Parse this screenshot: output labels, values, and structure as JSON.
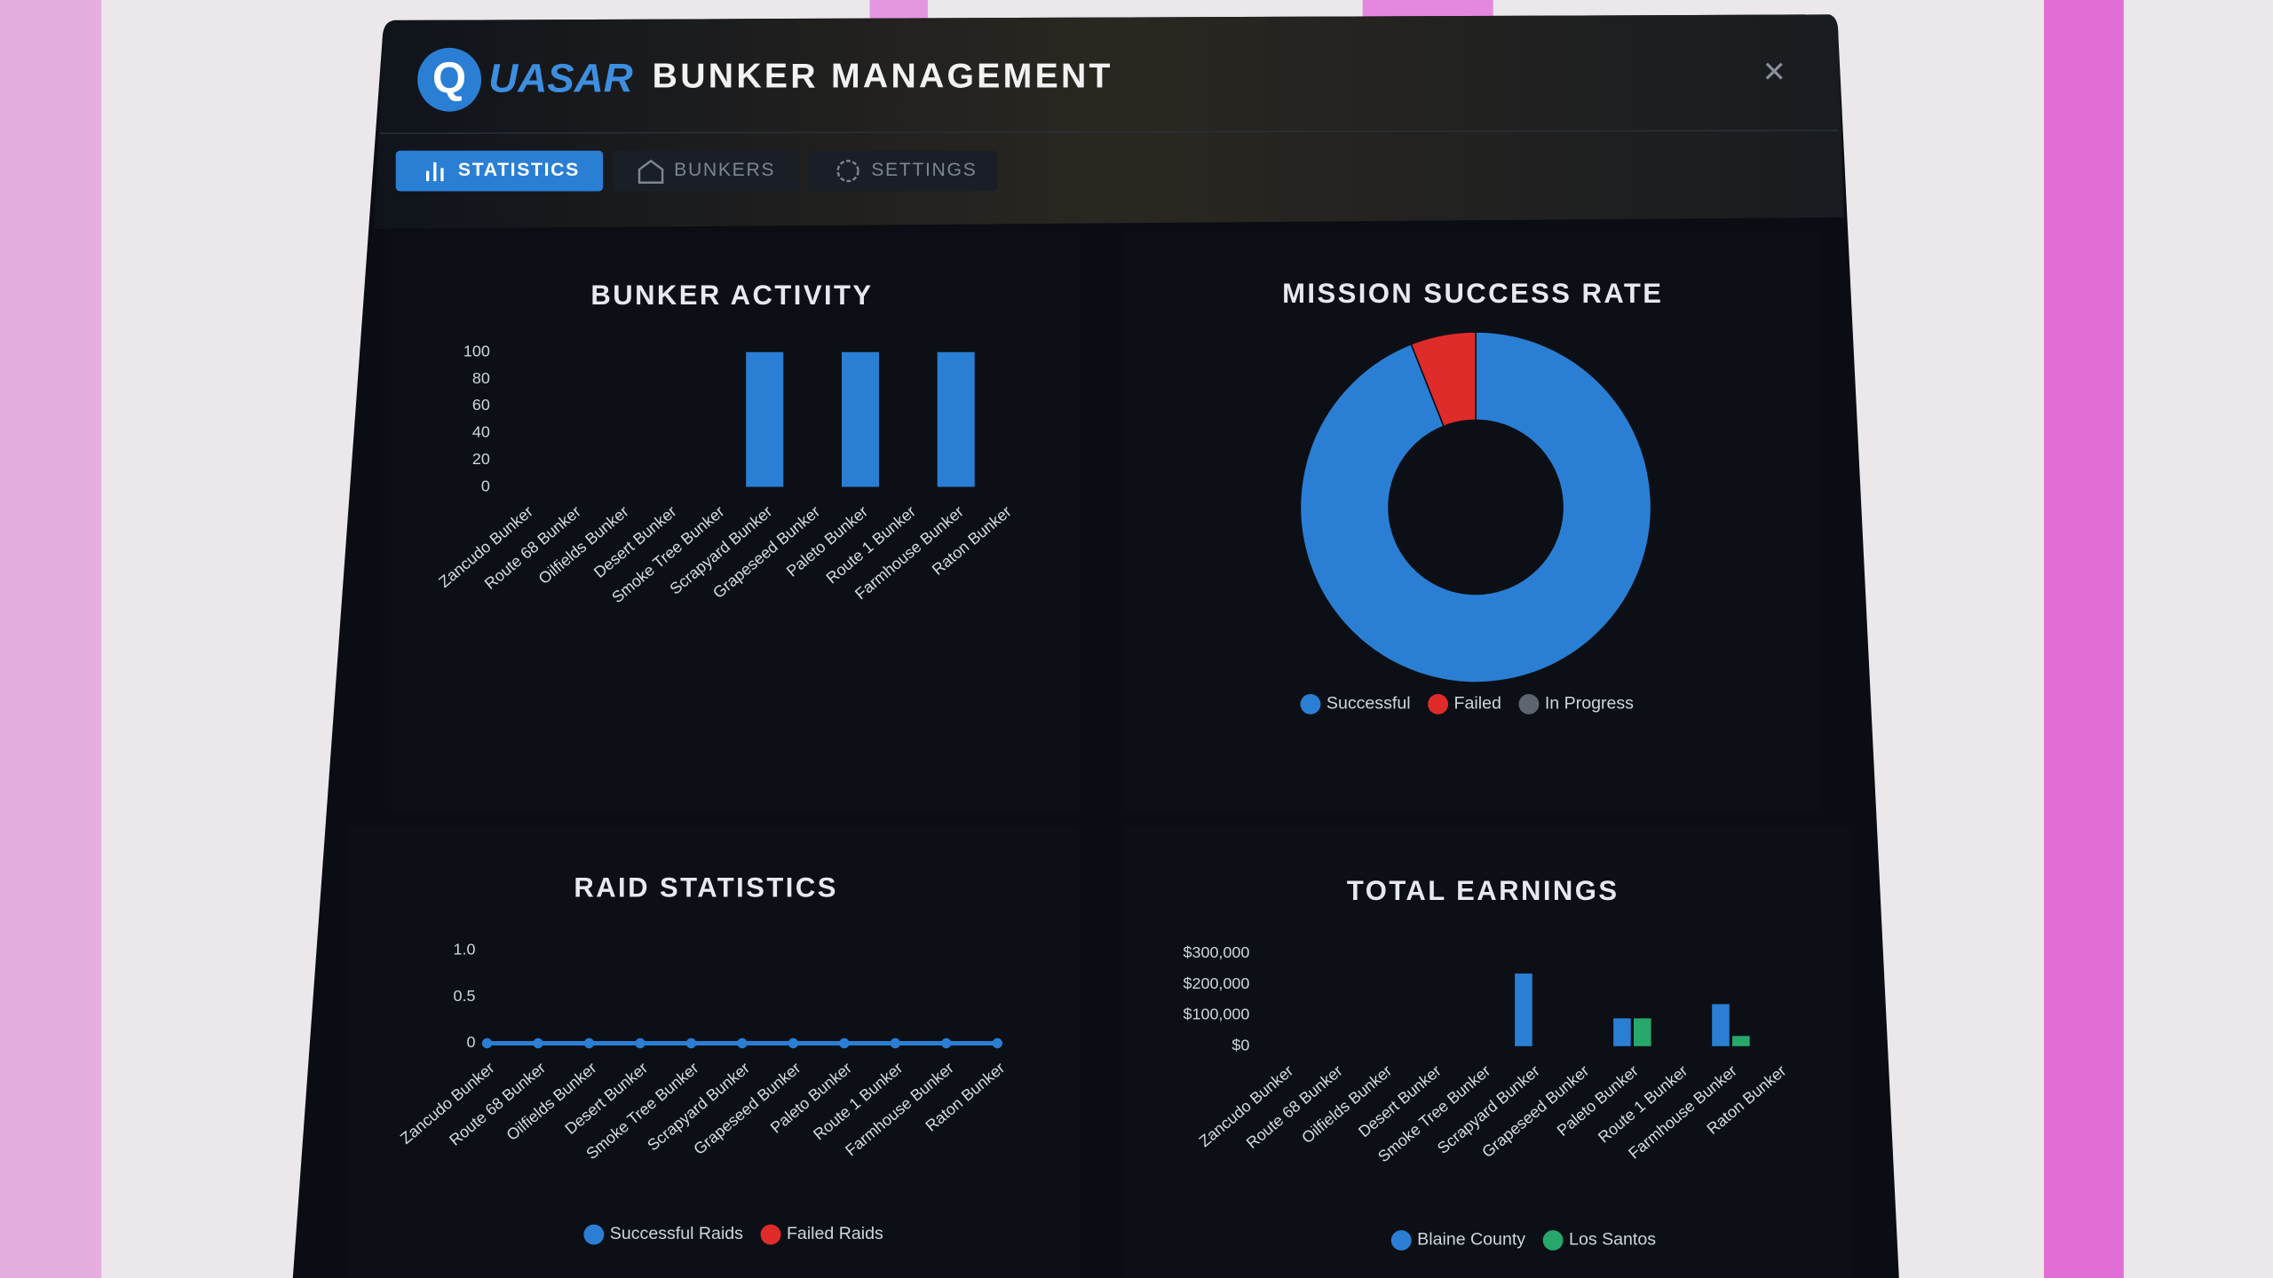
{
  "header": {
    "logo": "Q",
    "brand": "UASAR",
    "title": "BUNKER MANAGEMENT"
  },
  "tabs": [
    "STATISTICS",
    "BUNKERS",
    "SETTINGS"
  ],
  "chart_data": [
    {
      "type": "bar",
      "title": "BUNKER ACTIVITY",
      "categories": [
        "Zancudo Bunker",
        "Route 68 Bunker",
        "Oilfields Bunker",
        "Desert Bunker",
        "Smoke Tree Bunker",
        "Scrapyard Bunker",
        "Grapeseed Bunker",
        "Paleto Bunker",
        "Route 1 Bunker",
        "Farmhouse Bunker",
        "Raton Bunker"
      ],
      "values": [
        0,
        0,
        0,
        0,
        0,
        100,
        0,
        100,
        0,
        100,
        0
      ],
      "color": "#2a7fd4",
      "ylim": [
        0,
        100
      ],
      "yticks": [
        0,
        20,
        40,
        60,
        80,
        100
      ],
      "grid": false
    },
    {
      "type": "donut",
      "title": "MISSION SUCCESS RATE",
      "categories": [
        "Successful",
        "Failed",
        "In Progress"
      ],
      "values": [
        94,
        6,
        0
      ],
      "colors": [
        "#2a7fd4",
        "#e02b2b",
        "#5c6570"
      ]
    },
    {
      "type": "line",
      "title": "RAID STATISTICS",
      "categories": [
        "Zancudo Bunker",
        "Route 68 Bunker",
        "Oilfields Bunker",
        "Desert Bunker",
        "Smoke Tree Bunker",
        "Scrapyard Bunker",
        "Grapeseed Bunker",
        "Paleto Bunker",
        "Route 1 Bunker",
        "Farmhouse Bunker",
        "Raton Bunker"
      ],
      "series": [
        {
          "name": "Successful Raids",
          "color": "#2a7fd4",
          "values": [
            0,
            0,
            0,
            0,
            0,
            0,
            0,
            0,
            0,
            0,
            0
          ]
        },
        {
          "name": "Failed Raids",
          "color": "#e02b2b",
          "values": [
            0,
            0,
            0,
            0,
            0,
            0,
            0,
            0,
            0,
            0,
            0
          ]
        }
      ],
      "ylim": [
        0,
        1
      ],
      "yticks": [
        0,
        0.5,
        {
          "value": 1,
          "label": "1.0"
        }
      ],
      "grid": false
    },
    {
      "type": "bar",
      "title": "TOTAL EARNINGS",
      "categories": [
        "Zancudo Bunker",
        "Route 68 Bunker",
        "Oilfields Bunker",
        "Desert Bunker",
        "Smoke Tree Bunker",
        "Scrapyard Bunker",
        "Grapeseed Bunker",
        "Paleto Bunker",
        "Route 1 Bunker",
        "Farmhouse Bunker",
        "Raton Bunker"
      ],
      "series": [
        {
          "name": "Blaine County",
          "color": "#2a7fd4",
          "values": [
            0,
            0,
            0,
            0,
            0,
            235000,
            0,
            90000,
            0,
            136000,
            0
          ]
        },
        {
          "name": "Los Santos",
          "color": "#27a86a",
          "values": [
            0,
            0,
            0,
            0,
            0,
            0,
            0,
            90000,
            0,
            33000,
            0
          ]
        }
      ],
      "ylim": [
        0,
        300000
      ],
      "yticks": [
        {
          "value": 0,
          "label": "$0"
        },
        {
          "value": 100000,
          "label": "$100,000"
        },
        {
          "value": 200000,
          "label": "$200,000"
        },
        {
          "value": 300000,
          "label": "$300,000"
        }
      ],
      "grid": false
    }
  ]
}
